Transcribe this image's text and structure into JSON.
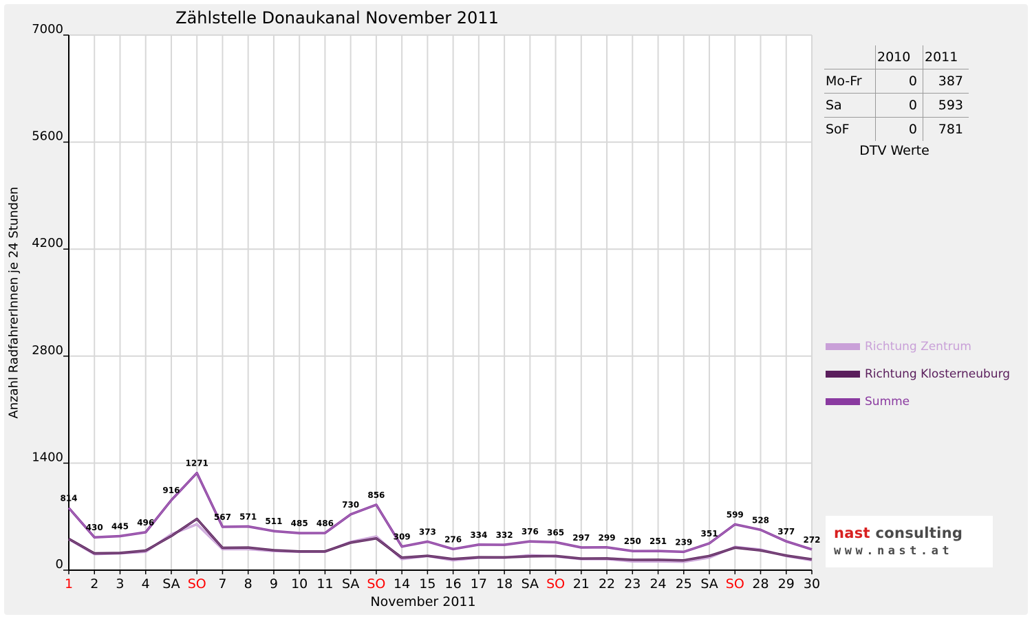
{
  "chart_data": {
    "type": "line",
    "title": "Zählstelle Donaukanal November 2011",
    "xlabel": "November 2011",
    "ylabel": "Anzahl RadfahrerInnen je 24 Stunden",
    "ylim": [
      0,
      7000
    ],
    "yticks": [
      "0",
      "1400",
      "2800",
      "4200",
      "5600",
      "7000"
    ],
    "grid": true,
    "legend_position": "right",
    "categories": [
      "1",
      "2",
      "3",
      "4",
      "SA",
      "SO",
      "7",
      "8",
      "9",
      "10",
      "11",
      "SA",
      "SO",
      "14",
      "15",
      "16",
      "17",
      "18",
      "SA",
      "SO",
      "21",
      "22",
      "23",
      "24",
      "25",
      "SA",
      "SO",
      "28",
      "29",
      "30"
    ],
    "highlighted_categories": [
      0,
      5,
      12,
      19,
      26
    ],
    "series": [
      {
        "name": "Richtung Zentrum",
        "color": "#c9a0d8",
        "values": [
          405,
          210,
          220,
          240,
          470,
          600,
          275,
          275,
          250,
          240,
          240,
          370,
          440,
          145,
          185,
          130,
          165,
          165,
          195,
          180,
          145,
          145,
          115,
          115,
          110,
          165,
          305,
          270,
          185,
          130
        ]
      },
      {
        "name": "Richtung Klosterneuburg",
        "color": "#5a1e5c",
        "values": [
          410,
          220,
          225,
          256,
          446,
          671,
          292,
          296,
          261,
          245,
          246,
          360,
          416,
          164,
          188,
          146,
          169,
          167,
          181,
          185,
          152,
          154,
          135,
          136,
          129,
          186,
          294,
          258,
          192,
          142
        ]
      },
      {
        "name": "Summe",
        "color": "#8a3aa0",
        "values": [
          814,
          430,
          445,
          496,
          916,
          1271,
          567,
          571,
          511,
          485,
          486,
          730,
          856,
          309,
          373,
          276,
          334,
          332,
          376,
          365,
          297,
          299,
          250,
          251,
          239,
          351,
          599,
          528,
          377,
          272
        ],
        "labels": [
          "814",
          "430",
          "445",
          "496",
          "916",
          "1271",
          "567",
          "571",
          "511",
          "485",
          "486",
          "730",
          "856",
          "309",
          "373",
          "276",
          "334",
          "332",
          "376",
          "365",
          "297",
          "299",
          "250",
          "251",
          "239",
          "351",
          "599",
          "528",
          "377",
          "272"
        ]
      }
    ]
  },
  "dtv": {
    "columns": [
      "",
      "2010",
      "2011"
    ],
    "rows": [
      {
        "label": "Mo-Fr",
        "v2010": "0",
        "v2011": "387"
      },
      {
        "label": "Sa",
        "v2010": "0",
        "v2011": "593"
      },
      {
        "label": "SoF",
        "v2010": "0",
        "v2011": "781"
      }
    ],
    "caption": "DTV Werte"
  },
  "logo": {
    "name_part1": "nast",
    "name_part2": "consulting",
    "url": "www.nast.at"
  },
  "colors": {
    "background": "#f0f0f0",
    "plot_background": "#ffffff",
    "holiday_label": "#ff0000"
  }
}
